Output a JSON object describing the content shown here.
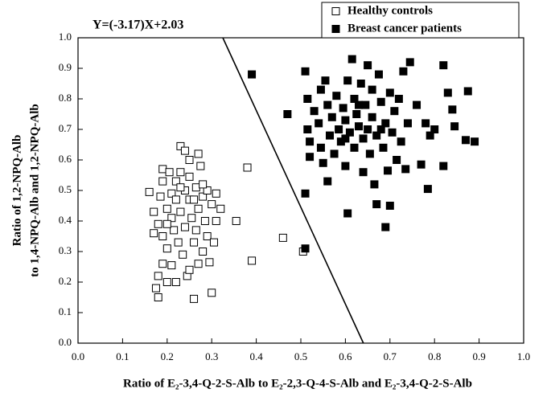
{
  "chart_data": {
    "type": "scatter",
    "annotation": "Y=(-3.17)X+2.03",
    "fit_line": {
      "slope": -3.17,
      "intercept": 2.03,
      "color": "#000000"
    },
    "xlabel": "Ratio of E₂-3,4-Q-2-S-Alb to E₂-2,3-Q-4-S-Alb and E₂-3,4-Q-2-S-Alb",
    "ylabel": [
      "Ratio of 1,2-NPQ-Alb",
      "to 1,4-NPQ-Alb and 1,2-NPQ-Alb"
    ],
    "xlim": [
      0,
      1
    ],
    "ylim": [
      0,
      1
    ],
    "xticks": [
      {
        "value": 0,
        "label": "0.0"
      },
      0.1,
      0.2,
      0.3,
      0.4,
      0.5,
      0.6,
      0.7,
      0.8,
      0.9,
      {
        "value": 1,
        "label": "1.0"
      }
    ],
    "yticks": [
      {
        "value": 0,
        "label": "0.0"
      },
      0.1,
      0.2,
      0.3,
      0.4,
      0.5,
      0.6,
      0.7,
      0.8,
      0.9,
      {
        "value": 1,
        "label": "1.0"
      }
    ],
    "grid": false,
    "legend": "upper right",
    "series": [
      {
        "name": "Healthy controls",
        "marker": "open",
        "color": "#000000",
        "x": [
          0.16,
          0.17,
          0.17,
          0.175,
          0.18,
          0.18,
          0.185,
          0.19,
          0.19,
          0.19,
          0.19,
          0.2,
          0.2,
          0.2,
          0.205,
          0.21,
          0.21,
          0.21,
          0.215,
          0.22,
          0.22,
          0.22,
          0.225,
          0.23,
          0.23,
          0.23,
          0.235,
          0.24,
          0.24,
          0.24,
          0.245,
          0.25,
          0.25,
          0.25,
          0.25,
          0.255,
          0.26,
          0.26,
          0.265,
          0.265,
          0.27,
          0.27,
          0.27,
          0.275,
          0.28,
          0.28,
          0.285,
          0.29,
          0.29,
          0.295,
          0.3,
          0.3,
          0.305,
          0.31,
          0.31,
          0.32,
          0.18,
          0.2,
          0.23,
          0.26,
          0.28,
          0.355,
          0.38,
          0.39,
          0.46,
          0.505
        ],
        "values": [
          0.495,
          0.36,
          0.43,
          0.18,
          0.22,
          0.39,
          0.48,
          0.57,
          0.53,
          0.35,
          0.26,
          0.2,
          0.44,
          0.31,
          0.56,
          0.49,
          0.41,
          0.255,
          0.37,
          0.53,
          0.47,
          0.2,
          0.33,
          0.645,
          0.56,
          0.43,
          0.29,
          0.63,
          0.5,
          0.38,
          0.22,
          0.6,
          0.545,
          0.47,
          0.24,
          0.41,
          0.33,
          0.145,
          0.51,
          0.37,
          0.62,
          0.44,
          0.26,
          0.58,
          0.48,
          0.3,
          0.4,
          0.5,
          0.35,
          0.265,
          0.455,
          0.165,
          0.33,
          0.49,
          0.4,
          0.44,
          0.15,
          0.39,
          0.51,
          0.47,
          0.52,
          0.4,
          0.575,
          0.27,
          0.345,
          0.3
        ]
      },
      {
        "name": "Breast cancer patients",
        "marker": "filled",
        "color": "#000000",
        "x": [
          0.39,
          0.47,
          0.51,
          0.51,
          0.51,
          0.515,
          0.515,
          0.52,
          0.52,
          0.53,
          0.54,
          0.545,
          0.55,
          0.555,
          0.56,
          0.56,
          0.565,
          0.57,
          0.575,
          0.58,
          0.585,
          0.59,
          0.595,
          0.6,
          0.6,
          0.605,
          0.605,
          0.61,
          0.615,
          0.62,
          0.62,
          0.625,
          0.63,
          0.635,
          0.64,
          0.64,
          0.645,
          0.65,
          0.65,
          0.655,
          0.66,
          0.66,
          0.665,
          0.67,
          0.67,
          0.675,
          0.68,
          0.685,
          0.69,
          0.69,
          0.695,
          0.7,
          0.7,
          0.705,
          0.71,
          0.715,
          0.72,
          0.725,
          0.73,
          0.735,
          0.74,
          0.745,
          0.76,
          0.77,
          0.78,
          0.785,
          0.79,
          0.8,
          0.82,
          0.82,
          0.83,
          0.84,
          0.845,
          0.87,
          0.875,
          0.89,
          0.545,
          0.6,
          0.63,
          0.68
        ],
        "values": [
          0.88,
          0.75,
          0.31,
          0.49,
          0.89,
          0.8,
          0.7,
          0.66,
          0.61,
          0.76,
          0.72,
          0.83,
          0.59,
          0.86,
          0.78,
          0.53,
          0.68,
          0.74,
          0.62,
          0.81,
          0.7,
          0.66,
          0.77,
          0.73,
          0.58,
          0.86,
          0.425,
          0.69,
          0.93,
          0.8,
          0.64,
          0.75,
          0.71,
          0.85,
          0.67,
          0.56,
          0.78,
          0.91,
          0.7,
          0.62,
          0.83,
          0.74,
          0.52,
          0.68,
          0.455,
          0.88,
          0.79,
          0.64,
          0.72,
          0.38,
          0.565,
          0.45,
          0.82,
          0.69,
          0.76,
          0.6,
          0.8,
          0.66,
          0.89,
          0.57,
          0.72,
          0.92,
          0.78,
          0.585,
          0.72,
          0.505,
          0.68,
          0.7,
          0.91,
          0.58,
          0.82,
          0.765,
          0.71,
          0.665,
          0.825,
          0.66,
          0.64,
          0.67,
          0.78,
          0.7
        ]
      }
    ]
  }
}
